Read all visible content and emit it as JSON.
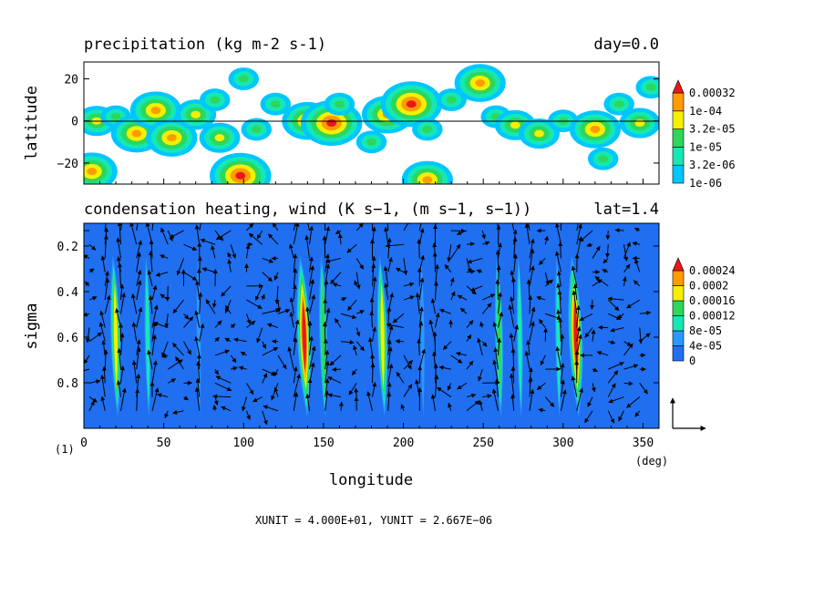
{
  "colors": {
    "white": "#ffffff",
    "cyan": "#00c6ff",
    "blue_bg": "#1f6ff0",
    "mid_blue": "#2a99ff",
    "teal": "#14e8b4",
    "green": "#2ed65a",
    "yellow": "#f4f000",
    "orange": "#ff9a00",
    "red": "#e81818"
  },
  "chart_data": [
    {
      "type": "heatmap",
      "title": "precipitation (kg m-2 s-1)",
      "title_right": "day=0.0",
      "xlabel": "",
      "ylabel": "latitude",
      "xlim": [
        0,
        360
      ],
      "ylim": [
        -30,
        28
      ],
      "yticks": [
        -20,
        0,
        20
      ],
      "ytick_labels": [
        "−20",
        "0",
        "20"
      ],
      "colorbar": {
        "levels": [
          "1e-06",
          "3.2e-06",
          "1e-05",
          "3.2e-05",
          "1e-04",
          "0.00032"
        ],
        "colors": [
          "#00c6ff",
          "#14e8b4",
          "#2ed65a",
          "#f4f000",
          "#ff9a00",
          "#e81818"
        ]
      },
      "features": [
        {
          "lon": 8,
          "lat": 0,
          "level": 3
        },
        {
          "lon": 20,
          "lat": 2,
          "level": 2
        },
        {
          "lon": 33,
          "lat": -6,
          "level": 4
        },
        {
          "lon": 45,
          "lat": 5,
          "level": 4
        },
        {
          "lon": 55,
          "lat": -8,
          "level": 4
        },
        {
          "lon": 70,
          "lat": 3,
          "level": 3
        },
        {
          "lon": 82,
          "lat": 10,
          "level": 2
        },
        {
          "lon": 85,
          "lat": -8,
          "level": 3
        },
        {
          "lon": 100,
          "lat": 20,
          "level": 2
        },
        {
          "lon": 108,
          "lat": -4,
          "level": 2
        },
        {
          "lon": 120,
          "lat": 8,
          "level": 2
        },
        {
          "lon": 140,
          "lat": 0,
          "level": 4
        },
        {
          "lon": 155,
          "lat": -1,
          "level": 5
        },
        {
          "lon": 160,
          "lat": 8,
          "level": 2
        },
        {
          "lon": 180,
          "lat": -10,
          "level": 2
        },
        {
          "lon": 190,
          "lat": 3,
          "level": 4
        },
        {
          "lon": 205,
          "lat": 8,
          "level": 5
        },
        {
          "lon": 215,
          "lat": -4,
          "level": 2
        },
        {
          "lon": 230,
          "lat": 10,
          "level": 2
        },
        {
          "lon": 248,
          "lat": 18,
          "level": 4
        },
        {
          "lon": 258,
          "lat": 2,
          "level": 2
        },
        {
          "lon": 270,
          "lat": -2,
          "level": 3
        },
        {
          "lon": 285,
          "lat": -6,
          "level": 3
        },
        {
          "lon": 300,
          "lat": 0,
          "level": 2
        },
        {
          "lon": 320,
          "lat": -4,
          "level": 4
        },
        {
          "lon": 335,
          "lat": 8,
          "level": 2
        },
        {
          "lon": 348,
          "lat": -1,
          "level": 3
        },
        {
          "lon": 355,
          "lat": 16,
          "level": 2
        },
        {
          "lon": 98,
          "lat": -26,
          "level": 5
        },
        {
          "lon": 215,
          "lat": -28,
          "level": 4
        },
        {
          "lon": 5,
          "lat": -24,
          "level": 4
        },
        {
          "lon": 325,
          "lat": -18,
          "level": 2
        }
      ]
    },
    {
      "type": "heatmap",
      "title": "condensation heating, wind (K s−1, (m s−1, s−1))",
      "title_right": "lat=1.4",
      "xlabel": "longitude",
      "ylabel": "sigma",
      "xlim": [
        0,
        360
      ],
      "ylim": [
        1.0,
        0.1
      ],
      "xticks": [
        0,
        50,
        100,
        150,
        200,
        250,
        300,
        350
      ],
      "xtick_labels": [
        "0",
        "50",
        "100",
        "150",
        "200",
        "250",
        "300",
        "350"
      ],
      "yticks": [
        0.2,
        0.4,
        0.6,
        0.8
      ],
      "ytick_labels": [
        "0.2",
        "0.4",
        "0.6",
        "0.8"
      ],
      "x_unit_label": "(deg)",
      "y_unit_label": "(1)",
      "colorbar": {
        "levels": [
          "0",
          "4e-05",
          "8e-05",
          "0.00012",
          "0.00016",
          "0.0002",
          "0.00024"
        ],
        "colors": [
          "#1f6ff0",
          "#2a99ff",
          "#14e8b4",
          "#2ed65a",
          "#f4f000",
          "#ff9a00",
          "#e81818"
        ]
      },
      "heating_columns": [
        {
          "lon": 20,
          "level": 4
        },
        {
          "lon": 40,
          "level": 2
        },
        {
          "lon": 72,
          "level": 1
        },
        {
          "lon": 138,
          "level": 6
        },
        {
          "lon": 150,
          "level": 3
        },
        {
          "lon": 187,
          "level": 4
        },
        {
          "lon": 212,
          "level": 1
        },
        {
          "lon": 260,
          "level": 3
        },
        {
          "lon": 273,
          "level": 2
        },
        {
          "lon": 297,
          "level": 2
        },
        {
          "lon": 308,
          "level": 6
        }
      ],
      "vector_scale_note": "XUNIT = 4.000E+01, YUNIT = 2.667E−06"
    }
  ]
}
